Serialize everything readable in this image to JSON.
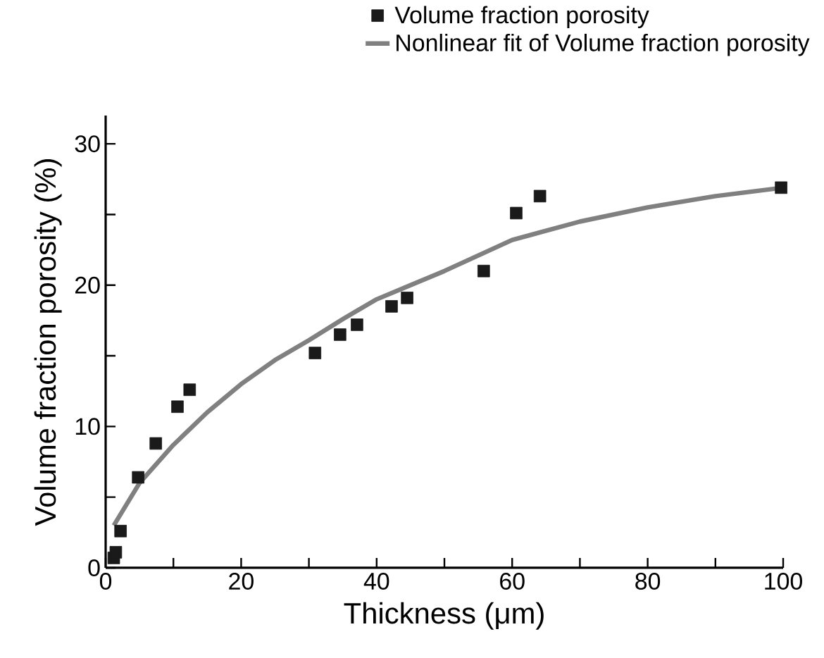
{
  "chart_data": {
    "type": "scatter",
    "xlabel": "Thickness (μm)",
    "ylabel": "Volume fraction porosity (%)",
    "xlim": [
      0,
      100
    ],
    "ylim": [
      0,
      32
    ],
    "xticks": [
      0,
      {
        "value": 10,
        "label": null
      },
      20,
      {
        "value": 30,
        "label": null
      },
      40,
      {
        "value": 50,
        "label": null
      },
      60,
      {
        "value": 70,
        "label": null
      },
      80,
      {
        "value": 90,
        "label": null
      },
      100
    ],
    "yticks": [
      0,
      {
        "value": 5,
        "label": null
      },
      10,
      {
        "value": 15,
        "label": null
      },
      20,
      {
        "value": 25,
        "label": null
      },
      30
    ],
    "legend": "top right",
    "grid": false,
    "series": [
      {
        "name": "Volume fraction porosity",
        "marker": "square",
        "color": "#1a1a1a",
        "x": [
          1.2,
          1.5,
          2.2,
          4.8,
          7.4,
          10.6,
          12.4,
          30.9,
          34.6,
          37.1,
          42.2,
          44.5,
          55.8,
          60.6,
          64.1,
          99.7
        ],
        "values": [
          0.7,
          1.1,
          2.6,
          6.4,
          8.8,
          11.4,
          12.6,
          15.2,
          16.5,
          17.2,
          18.5,
          19.1,
          21.0,
          25.1,
          26.3,
          26.9
        ]
      },
      {
        "name": "Nonlinear fit of Volume fraction porosity",
        "type": "line",
        "marker": "none",
        "line_style": "solid",
        "color": "#808080",
        "x": [
          1.2,
          5,
          10,
          15,
          20,
          25,
          30,
          35,
          40,
          45,
          50,
          60,
          70,
          80,
          90,
          100
        ],
        "values": [
          3.0,
          6.0,
          8.7,
          11.0,
          13.0,
          14.7,
          16.1,
          17.6,
          19.0,
          20.0,
          21.0,
          23.2,
          24.5,
          25.5,
          26.3,
          26.9
        ]
      }
    ]
  }
}
